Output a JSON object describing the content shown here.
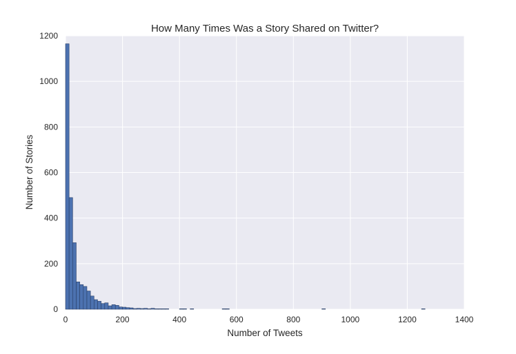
{
  "chart_data": {
    "type": "bar",
    "title": "How Many Times Was a Story Shared on Twitter?",
    "xlabel": "Number of Tweets",
    "ylabel": "Number of Stories",
    "xlim": [
      0,
      1400
    ],
    "ylim": [
      0,
      1200
    ],
    "xticks": [
      "0",
      "200",
      "400",
      "600",
      "800",
      "1000",
      "1200",
      "1400"
    ],
    "yticks": [
      "0",
      "200",
      "400",
      "600",
      "800",
      "1000",
      "1200"
    ],
    "grid": true,
    "bin_width": 12.5,
    "bins": [
      {
        "x": 6.25,
        "value": 1165
      },
      {
        "x": 18.75,
        "value": 490
      },
      {
        "x": 31.25,
        "value": 292
      },
      {
        "x": 43.75,
        "value": 120
      },
      {
        "x": 56.25,
        "value": 108
      },
      {
        "x": 68.75,
        "value": 100
      },
      {
        "x": 81.25,
        "value": 80
      },
      {
        "x": 93.75,
        "value": 58
      },
      {
        "x": 106.25,
        "value": 42
      },
      {
        "x": 118.75,
        "value": 35
      },
      {
        "x": 131.25,
        "value": 25
      },
      {
        "x": 143.75,
        "value": 28
      },
      {
        "x": 156.25,
        "value": 15
      },
      {
        "x": 168.75,
        "value": 20
      },
      {
        "x": 181.25,
        "value": 17
      },
      {
        "x": 193.75,
        "value": 10
      },
      {
        "x": 206.25,
        "value": 9
      },
      {
        "x": 218.75,
        "value": 7
      },
      {
        "x": 231.25,
        "value": 6
      },
      {
        "x": 243.75,
        "value": 3
      },
      {
        "x": 256.25,
        "value": 4
      },
      {
        "x": 268.75,
        "value": 3
      },
      {
        "x": 281.25,
        "value": 4
      },
      {
        "x": 293.75,
        "value": 2
      },
      {
        "x": 306.25,
        "value": 4
      },
      {
        "x": 318.75,
        "value": 2
      },
      {
        "x": 331.25,
        "value": 2
      },
      {
        "x": 343.75,
        "value": 2
      },
      {
        "x": 356.25,
        "value": 2
      },
      {
        "x": 406.25,
        "value": 2
      },
      {
        "x": 418.75,
        "value": 2
      },
      {
        "x": 443.75,
        "value": 2
      },
      {
        "x": 556.25,
        "value": 2
      },
      {
        "x": 568.75,
        "value": 2
      },
      {
        "x": 906.25,
        "value": 2
      },
      {
        "x": 1256.25,
        "value": 2
      }
    ],
    "colors": {
      "background": "#eaeaf2",
      "grid": "#ffffff",
      "bar": "#4c72b0",
      "bar_edge": "#2a3f66"
    }
  }
}
